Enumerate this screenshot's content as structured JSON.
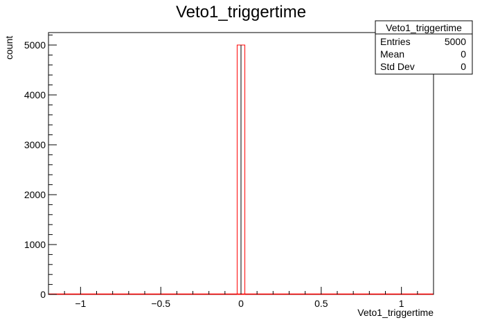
{
  "chart_data": {
    "type": "bar",
    "title": "Veto1_triggertime",
    "xlabel": "Veto1_triggertime",
    "ylabel": "count",
    "xlim": [
      -1.2,
      1.2
    ],
    "ylim": [
      0,
      5250
    ],
    "xticks": [
      -1,
      -0.5,
      0,
      0.5,
      1
    ],
    "xtick_labels": [
      "−1",
      "−0.5",
      "0",
      "0.5",
      "1"
    ],
    "yticks": [
      0,
      1000,
      2000,
      3000,
      4000,
      5000
    ],
    "ytick_labels": [
      "0",
      "1000",
      "2000",
      "3000",
      "4000",
      "5000"
    ],
    "bins": [
      {
        "x0": -0.024,
        "x1": 0.024,
        "value": 5000
      }
    ],
    "baseline_color": "#ff0000",
    "bar_color": "#ff0000",
    "stats": {
      "title": "Veto1_triggertime",
      "rows": [
        {
          "label": "Entries",
          "value": "5000"
        },
        {
          "label": "Mean",
          "value": "0"
        },
        {
          "label": "Std Dev",
          "value": "0"
        }
      ]
    },
    "grid": false,
    "legend": "top-right"
  }
}
